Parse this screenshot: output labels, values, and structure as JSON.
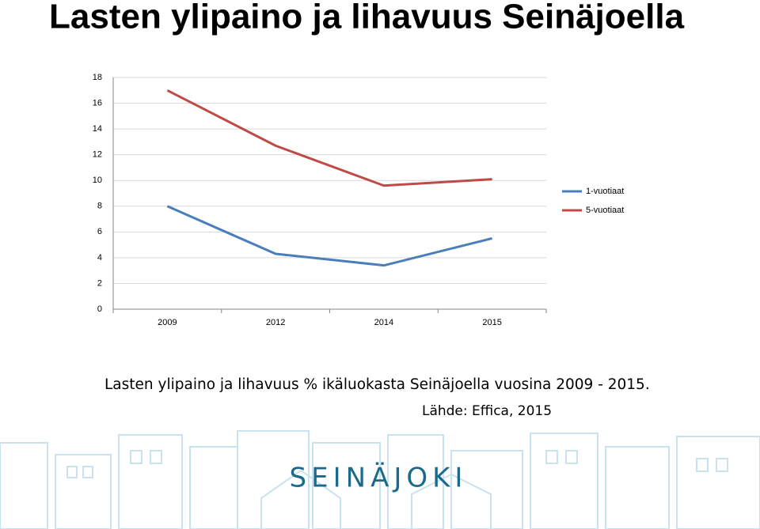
{
  "title": "Lasten ylipaino ja lihavuus Seinäjoella",
  "chart_data": {
    "type": "line",
    "categories": [
      "2009",
      "2012",
      "2014",
      "2015"
    ],
    "series": [
      {
        "name": "1-vuotiaat",
        "color": "#4a7ebb",
        "values": [
          8,
          4.3,
          3.4,
          5.5
        ]
      },
      {
        "name": "5-vuotiaat",
        "color": "#be4b48",
        "values": [
          17,
          12.7,
          9.6,
          10.1
        ]
      }
    ],
    "ylim": [
      0,
      18
    ],
    "yticks": [
      0,
      2,
      4,
      6,
      8,
      10,
      12,
      14,
      16,
      18
    ],
    "grid": true,
    "legend": "right"
  },
  "caption": "Lasten ylipaino ja lihavuus  % ikäluokasta Seinäjoella vuosina 2009 - 2015.",
  "source": "Lähde: Effica, 2015",
  "logo": "SEINÄJOKI"
}
